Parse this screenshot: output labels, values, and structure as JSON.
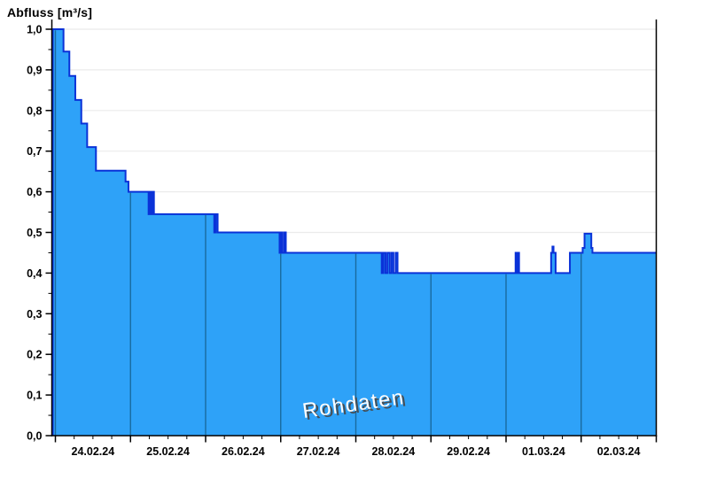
{
  "title": "Abfluss [m³/s]",
  "watermark": {
    "text": "Rohdaten"
  },
  "colors": {
    "area_fill": "#2EA2F8",
    "area_outline": "#0A32D8",
    "day_divider": "#16618F",
    "h_gridline": "#EBEBEB",
    "axis": "#000000",
    "background": "#FFFFFF",
    "watermark_text": "#FCFCFC",
    "watermark_shadow": "#474747"
  },
  "chart_data": {
    "type": "area",
    "variant": "step",
    "title": "Abfluss [m³/s]",
    "ylabel": "Abfluss [m³/s]",
    "xlabel": "",
    "unit": "m³/s",
    "ylim": [
      0.0,
      1.0
    ],
    "y_tick_labels": [
      "0,0",
      "0,1",
      "0,2",
      "0,3",
      "0,4",
      "0,5",
      "0,6",
      "0,7",
      "0,8",
      "0,9",
      "1,0"
    ],
    "y_tick_values": [
      0.0,
      0.1,
      0.2,
      0.3,
      0.4,
      0.5,
      0.6,
      0.7,
      0.8,
      0.9,
      1.0
    ],
    "y_minor_tick_step": 0.05,
    "grid": "horizontal-light",
    "legend": "none",
    "x_day_labels": [
      "24.02.24",
      "25.02.24",
      "26.02.24",
      "27.02.24",
      "28.02.24",
      "29.02.24",
      "01.03.24",
      "02.03.24"
    ],
    "x_days_total": 8,
    "x_minor_ticks_per_day": 4,
    "series": [
      {
        "name": "Rohdaten",
        "x_unit": "days_since_24.02.24_00:00",
        "points": [
          [
            -0.035,
            1.0
          ],
          [
            0.108,
            0.945
          ],
          [
            0.186,
            0.885
          ],
          [
            0.265,
            0.826
          ],
          [
            0.345,
            0.768
          ],
          [
            0.423,
            0.71
          ],
          [
            0.54,
            0.652
          ],
          [
            0.934,
            0.625
          ],
          [
            0.973,
            0.6
          ],
          [
            1.241,
            0.545
          ],
          [
            1.258,
            0.6
          ],
          [
            1.272,
            0.545
          ],
          [
            1.295,
            0.6
          ],
          [
            1.312,
            0.545
          ],
          [
            2.115,
            0.5
          ],
          [
            2.135,
            0.545
          ],
          [
            2.16,
            0.5
          ],
          [
            2.985,
            0.45
          ],
          [
            3.005,
            0.5
          ],
          [
            3.025,
            0.45
          ],
          [
            3.05,
            0.5
          ],
          [
            3.068,
            0.45
          ],
          [
            4.345,
            0.4
          ],
          [
            4.368,
            0.45
          ],
          [
            4.395,
            0.4
          ],
          [
            4.42,
            0.45
          ],
          [
            4.45,
            0.4
          ],
          [
            4.475,
            0.45
          ],
          [
            4.5,
            0.4
          ],
          [
            4.53,
            0.45
          ],
          [
            4.555,
            0.4
          ],
          [
            6.127,
            0.45
          ],
          [
            6.142,
            0.4
          ],
          [
            6.158,
            0.45
          ],
          [
            6.173,
            0.4
          ],
          [
            6.6,
            0.45
          ],
          [
            6.618,
            0.465
          ],
          [
            6.632,
            0.45
          ],
          [
            6.66,
            0.4
          ],
          [
            6.85,
            0.45
          ],
          [
            7.02,
            0.462
          ],
          [
            7.045,
            0.497
          ],
          [
            7.135,
            0.462
          ],
          [
            7.15,
            0.45
          ],
          [
            8.0,
            0.45
          ]
        ]
      }
    ]
  }
}
